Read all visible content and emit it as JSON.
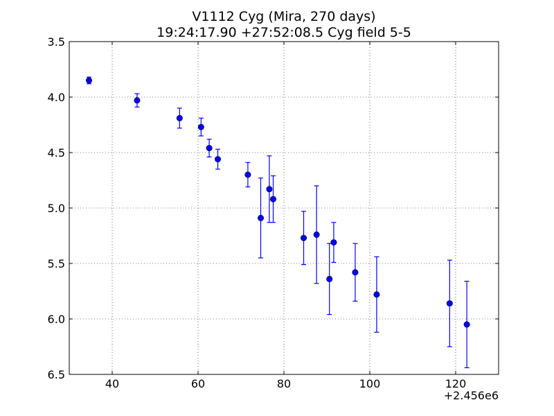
{
  "chart_data": {
    "type": "scatter",
    "title": "V1112 Cyg (Mira, 270 days)",
    "subtitle": "19:24:17.90 +27:52:08.5 Cyg field 5-5",
    "xlabel": "",
    "ylabel": "",
    "x_offset_label": "+2.456e6",
    "xlim": [
      30,
      130
    ],
    "ylim": [
      3.5,
      6.5
    ],
    "y_inverted": true,
    "grid": true,
    "marker_color": "#0000ff",
    "x_ticks": [
      40,
      60,
      80,
      100,
      120
    ],
    "x_tick_labels": [
      "40",
      "60",
      "80",
      "100",
      "120"
    ],
    "y_ticks": [
      3.5,
      4.0,
      4.5,
      5.0,
      5.5,
      6.0,
      6.5
    ],
    "y_tick_labels": [
      "3.5",
      "4.0",
      "4.5",
      "5.0",
      "5.5",
      "6.0",
      "6.5"
    ],
    "points": [
      {
        "x": 34.6,
        "y": 3.85,
        "err": 0.03
      },
      {
        "x": 45.8,
        "y": 4.03,
        "err": 0.06
      },
      {
        "x": 55.7,
        "y": 4.19,
        "err": 0.09
      },
      {
        "x": 60.7,
        "y": 4.27,
        "err": 0.08
      },
      {
        "x": 62.6,
        "y": 4.46,
        "err": 0.08
      },
      {
        "x": 64.6,
        "y": 4.56,
        "err": 0.09
      },
      {
        "x": 71.6,
        "y": 4.7,
        "err": 0.11
      },
      {
        "x": 74.6,
        "y": 5.09,
        "err": 0.36
      },
      {
        "x": 76.6,
        "y": 4.83,
        "err": 0.3
      },
      {
        "x": 77.5,
        "y": 4.92,
        "err": 0.21
      },
      {
        "x": 84.6,
        "y": 5.27,
        "err": 0.24
      },
      {
        "x": 87.6,
        "y": 5.24,
        "err": 0.44
      },
      {
        "x": 90.6,
        "y": 5.64,
        "err": 0.32
      },
      {
        "x": 91.6,
        "y": 5.31,
        "err": 0.18
      },
      {
        "x": 96.6,
        "y": 5.58,
        "err": 0.26
      },
      {
        "x": 101.6,
        "y": 5.78,
        "err": 0.34
      },
      {
        "x": 118.6,
        "y": 5.86,
        "err": 0.39
      },
      {
        "x": 122.6,
        "y": 6.05,
        "err": 0.39
      }
    ]
  }
}
